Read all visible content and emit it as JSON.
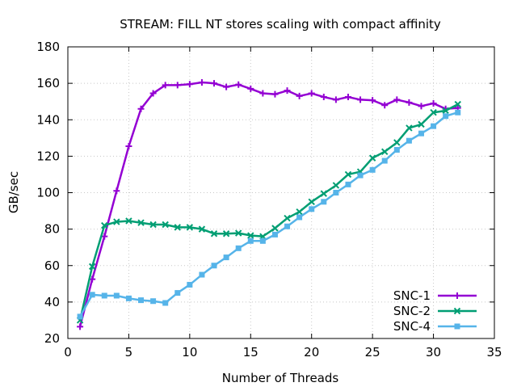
{
  "chart_data": {
    "type": "line",
    "title": "STREAM: FILL NT stores scaling with compact affinity",
    "xlabel": "Number of Threads",
    "ylabel": "GB/sec",
    "xlim": [
      0,
      35
    ],
    "ylim": [
      20,
      180
    ],
    "xticks": [
      0,
      5,
      10,
      15,
      20,
      25,
      30,
      35
    ],
    "yticks": [
      20,
      40,
      60,
      80,
      100,
      120,
      140,
      160,
      180
    ],
    "grid": true,
    "legend_position": "bottom-right",
    "x": [
      1,
      2,
      3,
      4,
      5,
      6,
      7,
      8,
      9,
      10,
      11,
      12,
      13,
      14,
      15,
      16,
      17,
      18,
      19,
      20,
      21,
      22,
      23,
      24,
      25,
      26,
      27,
      28,
      29,
      30,
      31,
      32
    ],
    "series": [
      {
        "name": "SNC-1",
        "color": "#9400d3",
        "marker": "plus",
        "values": [
          26.5,
          52.5,
          76,
          101,
          125.5,
          146,
          154.5,
          159,
          159,
          159.5,
          160.5,
          160,
          158,
          159.3,
          157,
          154.5,
          154,
          156,
          153,
          154.5,
          152.5,
          151,
          152.5,
          151,
          150.7,
          148,
          151,
          149.5,
          147.5,
          149,
          146,
          146.5
        ]
      },
      {
        "name": "SNC-2",
        "color": "#009e73",
        "marker": "x",
        "values": [
          30,
          59.5,
          82,
          84,
          84.5,
          83.5,
          82.5,
          82.5,
          81,
          81,
          80,
          77.5,
          77.5,
          77.8,
          76.5,
          76,
          80.5,
          86,
          89.5,
          95,
          99.5,
          104,
          110,
          111.5,
          119,
          122.5,
          127.5,
          135.5,
          137.5,
          144,
          145,
          148.5
        ]
      },
      {
        "name": "SNC-4",
        "color": "#56b4e9",
        "marker": "square",
        "values": [
          32,
          44,
          43.5,
          43.5,
          42,
          41,
          40.5,
          39.5,
          45,
          49.5,
          55,
          60,
          64.5,
          69.5,
          73.5,
          73.5,
          77,
          81.5,
          86.5,
          91,
          95,
          100,
          104.5,
          109.5,
          112.5,
          117.5,
          123.5,
          128.5,
          132.5,
          136.5,
          142,
          144
        ]
      }
    ]
  }
}
